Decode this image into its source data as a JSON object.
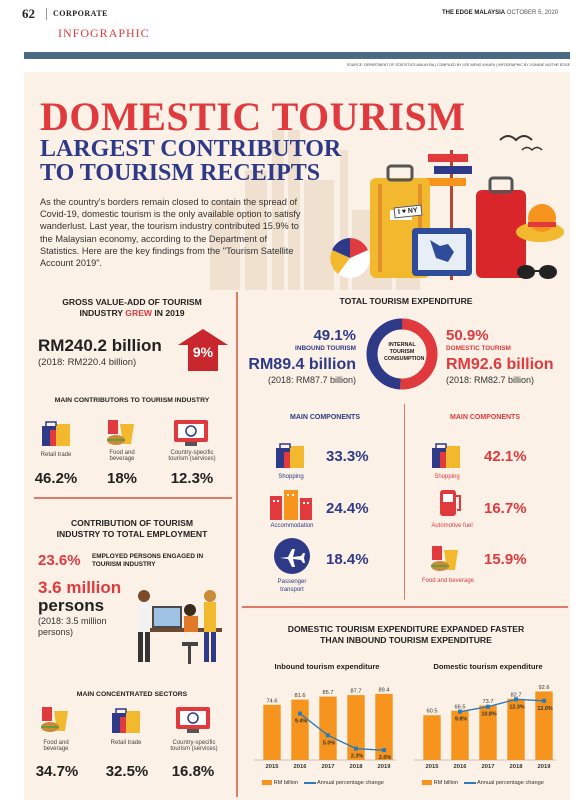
{
  "header": {
    "page_number": "62",
    "section": "CORPORATE",
    "publication": "THE EDGE MALAYSIA",
    "date": "OCTOBER 5, 2020",
    "category": "INFOGRAPHIC"
  },
  "credits": "SOURCE: DEPARTMENT OF STATISTICS MALAYSIA | COMPILED BY LEE WENG KHUEN | INFOGRAPHIC BY JOANNE NG/THE EDGE",
  "hero": {
    "title_line1": "DOMESTIC TOURISM",
    "title_line2": "LARGEST CONTRIBUTOR",
    "title_line3": "TO TOURISM RECEIPTS",
    "intro": "As the country's borders remain closed to contain the spread of Covid-19, domestic tourism is the only available option to satisfy wanderlust. Last year, the tourism industry contributed 15.9% to the Malaysian economy, according to the Department of Statistics. Here are the key findings from the \"Tourism Satellite Account 2019\".",
    "tag_text": "I ♥ NY"
  },
  "gva": {
    "heading_a": "GROSS VALUE-ADD OF TOURISM",
    "heading_b": "INDUSTRY ",
    "heading_grew": "GREW",
    "heading_c": " IN 2019",
    "value": "RM240.2 billion",
    "prior": "(2018: RM220.4 billion)",
    "growth": "9%"
  },
  "contributors": {
    "heading": "MAIN CONTRIBUTORS TO TOURISM INDUSTRY",
    "items": [
      {
        "label": "Retail trade",
        "pct": "46.2%"
      },
      {
        "label": "Food and beverage",
        "pct": "18%"
      },
      {
        "label": "Country-specific tourism (services)",
        "pct": "12.3%"
      }
    ]
  },
  "employment": {
    "heading_a": "CONTRIBUTION OF TOURISM",
    "heading_b": "INDUSTRY TO TOTAL EMPLOYMENT",
    "pct": "23.6%",
    "pct_text": "EMPLOYED PERSONS ENGAGED IN TOURISM INDUSTRY",
    "count": "3.6 million",
    "count_unit": "persons",
    "prior": "(2018: 3.5 million persons)"
  },
  "sectors": {
    "heading": "MAIN CONCENTRATED SECTORS",
    "items": [
      {
        "label": "Food and beverage",
        "pct": "34.7%"
      },
      {
        "label": "Retail trade",
        "pct": "32.5%"
      },
      {
        "label": "Country-specific tourism (services)",
        "pct": "16.8%"
      }
    ]
  },
  "expenditure": {
    "heading": "TOTAL TOURISM EXPENDITURE",
    "inbound_pct": "49.1%",
    "inbound_label": "INBOUND TOURISM",
    "inbound_value": "RM89.4 billion",
    "inbound_prior": "(2018: RM87.7 billion)",
    "domestic_pct": "50.9%",
    "domestic_label": "DOMESTIC TOURISM",
    "domestic_value": "RM92.6 billion",
    "domestic_prior": "(2018: RM82.7 billion)",
    "center_label": "INTERNAL TOURISM CONSUMPTION",
    "inbound_share": 49.1,
    "domestic_share": 50.9
  },
  "components": {
    "heading_left": "MAIN COMPONENTS",
    "heading_right": "MAIN COMPONENTS",
    "inbound": [
      {
        "label": "Shopping",
        "pct": "33.3%"
      },
      {
        "label": "Accommodation",
        "pct": "24.4%"
      },
      {
        "label": "Passenger transport",
        "pct": "18.4%"
      }
    ],
    "domestic": [
      {
        "label": "Shopping",
        "pct": "42.1%"
      },
      {
        "label": "Automotive fuel",
        "pct": "16.7%"
      },
      {
        "label": "Food and beverage",
        "pct": "15.9%"
      }
    ]
  },
  "growth": {
    "heading_a": "DOMESTIC TOURISM EXPENDITURE EXPANDED FASTER",
    "heading_b": "THAN INBOUND TOURISM EXPENDITURE",
    "legend_bar": "RM billion",
    "legend_line": "Annual percentage change"
  },
  "colors": {
    "accent_red": "#e03a3e",
    "navy": "#2e3a87",
    "orange": "#f7941d",
    "blue_line": "#2b7bb9",
    "cream": "#fbf1e6"
  },
  "chart_data": [
    {
      "type": "bar",
      "title": "Inbound tourism expenditure",
      "categories": [
        "2015",
        "2016",
        "2017",
        "2018",
        "2019"
      ],
      "series": [
        {
          "name": "RM billion",
          "values": [
            74.6,
            81.6,
            85.7,
            87.7,
            89.4
          ]
        },
        {
          "name": "Annual percentage change",
          "type": "line",
          "values": [
            null,
            9.4,
            5.0,
            2.3,
            2.0
          ]
        }
      ],
      "bar_labels": [
        "74.6",
        "81.6",
        "85.7",
        "87.7",
        "89.4"
      ],
      "line_labels": [
        "",
        "9.4%",
        "5.0%",
        "2.3%",
        "2.0%"
      ],
      "ylim": [
        0,
        100
      ],
      "ylim_line": [
        0,
        15
      ],
      "legend": "bottom"
    },
    {
      "type": "bar",
      "title": "Domestic tourism expenditure",
      "categories": [
        "2015",
        "2016",
        "2017",
        "2018",
        "2019"
      ],
      "series": [
        {
          "name": "RM billion",
          "values": [
            60.5,
            66.5,
            73.7,
            82.7,
            92.6
          ]
        },
        {
          "name": "Annual percentage change",
          "type": "line",
          "values": [
            null,
            9.8,
            10.8,
            12.3,
            12.0
          ]
        }
      ],
      "bar_labels": [
        "60.5",
        "66.5",
        "73.7",
        "82.7",
        "92.6"
      ],
      "line_labels": [
        "",
        "9.8%",
        "10.8%",
        "12.3%",
        "12.0%"
      ],
      "ylim": [
        0,
        100
      ],
      "ylim_line": [
        0,
        15
      ],
      "legend": "bottom"
    }
  ]
}
